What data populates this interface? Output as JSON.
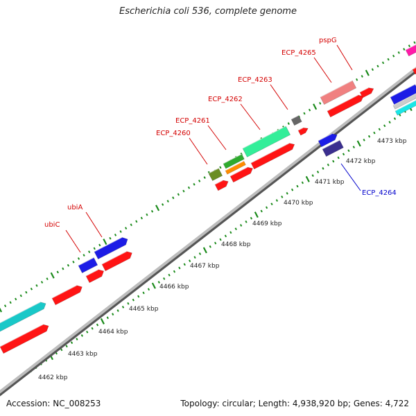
{
  "title": "Escherichia coli 536, complete genome",
  "footer": {
    "accession": "Accession: NC_008253",
    "summary": "Topology: circular; Length: 4,938,920 bp; Genes: 4,722"
  },
  "colors": {
    "forward_cds": "#ff1a1a",
    "reverse_cds": "#ff1a1a",
    "backbone": "#8a8a8a",
    "tick_marks": "#1a8a1a",
    "label_plus": "#d40000",
    "label_minus": "#0000cc"
  },
  "scale_ticks": [
    {
      "label": "4462 kbp"
    },
    {
      "label": "4463 kbp"
    },
    {
      "label": "4464 kbp"
    },
    {
      "label": "4465 kbp"
    },
    {
      "label": "4466 kbp"
    },
    {
      "label": "4467 kbp"
    },
    {
      "label": "4468 kbp"
    },
    {
      "label": "4469 kbp"
    },
    {
      "label": "4470 kbp"
    },
    {
      "label": "4471 kbp"
    },
    {
      "label": "4472 kbp"
    },
    {
      "label": "4473 kbp"
    }
  ],
  "gene_labels": [
    {
      "name": "ubiC",
      "strand": "plus"
    },
    {
      "name": "ubiA",
      "strand": "plus"
    },
    {
      "name": "ECP_4260",
      "strand": "plus"
    },
    {
      "name": "ECP_4261",
      "strand": "plus"
    },
    {
      "name": "ECP_4262",
      "strand": "plus"
    },
    {
      "name": "ECP_4263",
      "strand": "plus"
    },
    {
      "name": "ECP_4265",
      "strand": "plus"
    },
    {
      "name": "pspG",
      "strand": "plus"
    },
    {
      "name": "ECP_4264",
      "strand": "minus"
    }
  ]
}
